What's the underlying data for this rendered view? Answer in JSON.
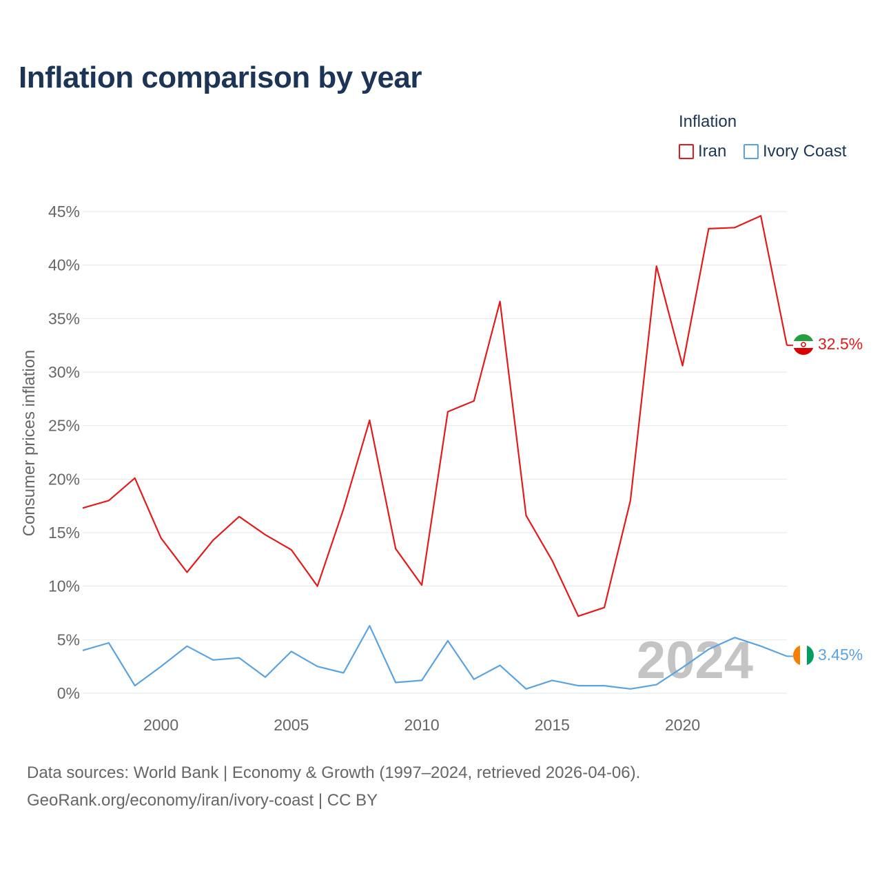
{
  "title": "Inflation comparison by year",
  "legend": {
    "title": "Inflation",
    "items": [
      {
        "label": "Iran",
        "color": "#e31a1c"
      },
      {
        "label": "Ivory Coast",
        "color": "#5aa3e0"
      }
    ]
  },
  "footer": {
    "line1": "Data sources: World Bank | Economy & Growth (1997–2024, retrieved 2026-04-06).",
    "line2": "GeoRank.org/economy/iran/ivory-coast | CC BY"
  },
  "chart_data": {
    "type": "line",
    "title": "Inflation comparison by year",
    "xlabel": "",
    "ylabel": "Consumer prices inflation",
    "xlim": [
      1997,
      2024
    ],
    "ylim": [
      -2,
      46
    ],
    "yticks": [
      0,
      5,
      10,
      15,
      20,
      25,
      30,
      35,
      40,
      45
    ],
    "ytick_labels": [
      "0%",
      "5%",
      "10%",
      "15%",
      "20%",
      "25%",
      "30%",
      "35%",
      "40%",
      "45%"
    ],
    "xticks": [
      2000,
      2005,
      2010,
      2015,
      2020
    ],
    "xtick_labels": [
      "2000",
      "2005",
      "2010",
      "2015",
      "2020"
    ],
    "grid": true,
    "year_watermark": "2024",
    "x": [
      1997,
      1998,
      1999,
      2000,
      2001,
      2002,
      2003,
      2004,
      2005,
      2006,
      2007,
      2008,
      2009,
      2010,
      2011,
      2012,
      2013,
      2014,
      2015,
      2016,
      2017,
      2018,
      2019,
      2020,
      2021,
      2022,
      2023,
      2024
    ],
    "series": [
      {
        "name": "Iran",
        "color": "#e31a1c",
        "end_label": "32.5%",
        "flag": "iran-flag",
        "values": [
          17.3,
          18.0,
          20.1,
          14.5,
          11.3,
          14.3,
          16.5,
          14.8,
          13.4,
          10.0,
          17.2,
          25.5,
          13.5,
          10.1,
          26.3,
          27.3,
          36.6,
          16.6,
          12.4,
          7.2,
          8.0,
          18.0,
          39.9,
          30.6,
          43.4,
          43.5,
          44.6,
          32.5
        ]
      },
      {
        "name": "Ivory Coast",
        "color": "#5aa3e0",
        "end_label": "3.45%",
        "flag": "ivory-coast-flag",
        "values": [
          4.0,
          4.7,
          0.7,
          2.5,
          4.4,
          3.1,
          3.3,
          1.5,
          3.9,
          2.5,
          1.9,
          6.3,
          1.0,
          1.2,
          4.9,
          1.3,
          2.6,
          0.4,
          1.2,
          0.7,
          0.7,
          0.4,
          0.8,
          2.4,
          4.1,
          5.2,
          4.4,
          3.45
        ]
      }
    ]
  }
}
